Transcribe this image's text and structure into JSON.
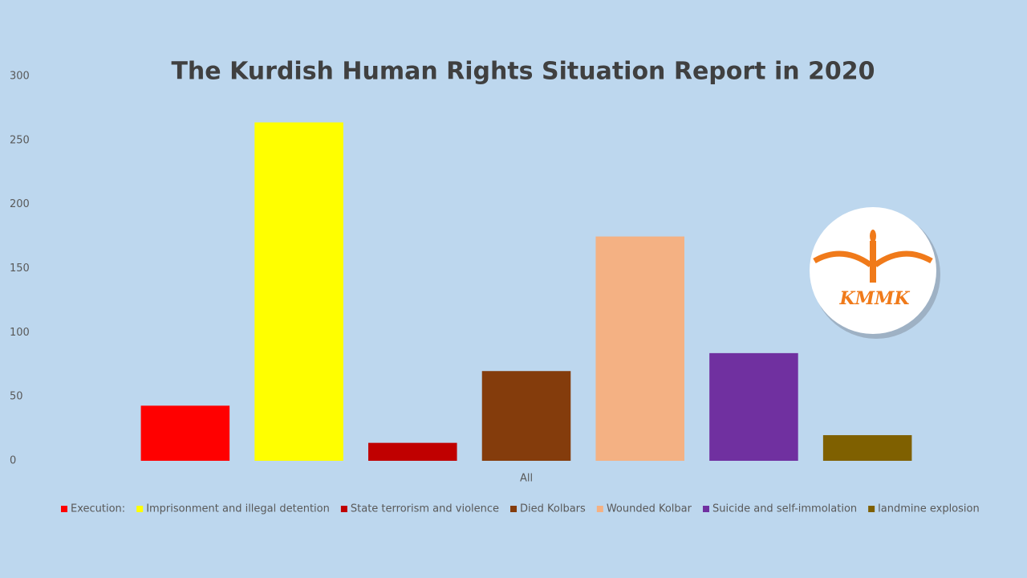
{
  "chart_data": {
    "type": "bar",
    "title": "The Kurdish Human Rights Situation Report in 2020",
    "categories": [
      "All"
    ],
    "series": [
      {
        "name": "Execution:",
        "color": "#ff0000",
        "values": [
          43
        ]
      },
      {
        "name": "Imprisonment and illegal detention",
        "color": "#ffff00",
        "values": [
          264
        ]
      },
      {
        "name": "State terrorism and violence",
        "color": "#c00000",
        "values": [
          14
        ]
      },
      {
        "name": "Died Kolbars",
        "color": "#843c0c",
        "values": [
          70
        ]
      },
      {
        "name": "Wounded Kolbar",
        "color": "#f4b183",
        "values": [
          175
        ]
      },
      {
        "name": "Suicide and self-immolation",
        "color": "#7030a0",
        "values": [
          84
        ]
      },
      {
        "name": "landmine explosion",
        "color": "#7f6000",
        "values": [
          20
        ]
      }
    ],
    "ylim": [
      0,
      300
    ],
    "yticks": [
      0,
      50,
      100,
      150,
      200,
      250,
      300
    ],
    "grid": false,
    "legend": "bottom",
    "annotations": [
      "KMMK"
    ]
  }
}
